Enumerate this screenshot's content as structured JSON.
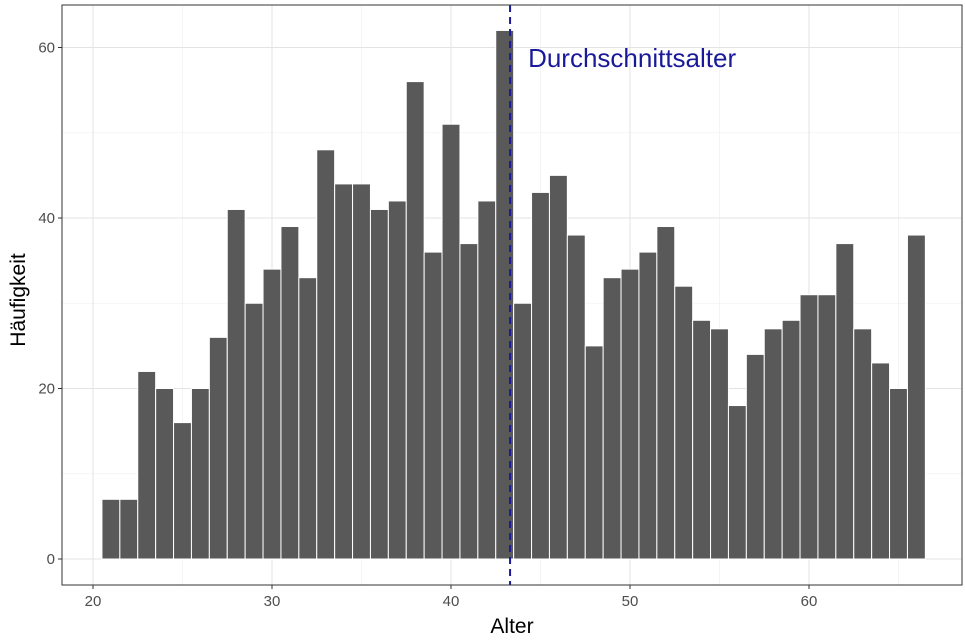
{
  "chart_data": {
    "type": "bar",
    "xlabel": "Alter",
    "ylabel": "Häufigkeit",
    "xlim": [
      20,
      67.5
    ],
    "ylim": [
      0,
      62
    ],
    "x_ticks": [
      20,
      30,
      40,
      50,
      60
    ],
    "y_ticks": [
      0,
      20,
      40,
      60
    ],
    "grid": true,
    "bar_color": "#595959",
    "bin_width": 1,
    "x": [
      21,
      22,
      23,
      24,
      25,
      26,
      27,
      28,
      29,
      30,
      31,
      32,
      33,
      34,
      35,
      36,
      37,
      38,
      39,
      40,
      41,
      42,
      43,
      44,
      45,
      46,
      47,
      48,
      49,
      50,
      51,
      52,
      53,
      54,
      55,
      56,
      57,
      58,
      59,
      60,
      61,
      62,
      63,
      64,
      65,
      66
    ],
    "values": [
      7,
      7,
      22,
      20,
      16,
      20,
      26,
      41,
      30,
      34,
      39,
      33,
      48,
      44,
      44,
      41,
      42,
      56,
      36,
      51,
      37,
      42,
      62,
      30,
      43,
      45,
      38,
      25,
      33,
      34,
      36,
      39,
      32,
      28,
      27,
      18,
      24,
      27,
      28,
      31,
      31,
      37,
      27,
      23,
      20,
      38
    ],
    "mean_line": {
      "x": 43.3,
      "label": "Durchschnittsalter",
      "color": "#1a1a99"
    }
  }
}
